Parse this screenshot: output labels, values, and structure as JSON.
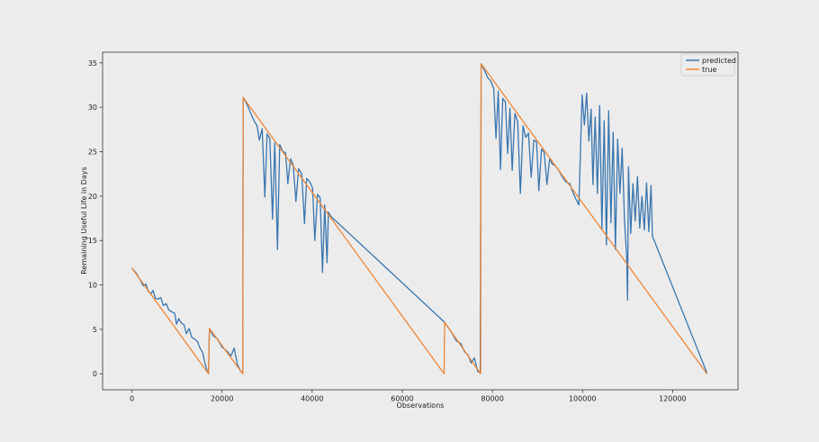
{
  "chart_data": {
    "type": "line",
    "xlabel": "Observations",
    "ylabel": "Remaining Useful Life in Days",
    "xlim": [
      -6500,
      134500
    ],
    "ylim": [
      -1.8,
      36.2
    ],
    "x_ticks": [
      0,
      20000,
      40000,
      60000,
      80000,
      100000,
      120000
    ],
    "y_ticks": [
      0,
      5,
      10,
      15,
      20,
      25,
      30,
      35
    ],
    "grid": false,
    "legend_placement": "top-right",
    "colors": {
      "predicted": "#3a76af",
      "true": "#ef8636"
    },
    "series": [
      {
        "name": "predicted",
        "points": [
          [
            0,
            11.9
          ],
          [
            1000,
            11.3
          ],
          [
            1800,
            10.6
          ],
          [
            2500,
            9.9
          ],
          [
            3100,
            10.1
          ],
          [
            3600,
            9.3
          ],
          [
            4200,
            9.0
          ],
          [
            4700,
            9.4
          ],
          [
            5200,
            8.5
          ],
          [
            5800,
            8.4
          ],
          [
            6400,
            8.6
          ],
          [
            7000,
            7.7
          ],
          [
            7600,
            7.9
          ],
          [
            8200,
            7.2
          ],
          [
            8800,
            7.0
          ],
          [
            9500,
            6.8
          ],
          [
            9900,
            5.6
          ],
          [
            10400,
            6.2
          ],
          [
            11000,
            5.7
          ],
          [
            11600,
            5.5
          ],
          [
            12100,
            4.5
          ],
          [
            12700,
            5.1
          ],
          [
            13300,
            4.1
          ],
          [
            14000,
            3.9
          ],
          [
            14600,
            3.6
          ],
          [
            15100,
            2.9
          ],
          [
            15700,
            2.4
          ],
          [
            16200,
            1.2
          ],
          [
            16700,
            0.3
          ],
          [
            17000,
            0.1
          ],
          [
            17200,
            5.1
          ],
          [
            18000,
            4.3
          ],
          [
            19000,
            3.9
          ],
          [
            20000,
            3.0
          ],
          [
            21000,
            2.6
          ],
          [
            22000,
            2.0
          ],
          [
            22700,
            2.9
          ],
          [
            23400,
            1.1
          ],
          [
            24100,
            0.3
          ],
          [
            24600,
            0.1
          ],
          [
            24700,
            31.1
          ],
          [
            25600,
            30.3
          ],
          [
            26500,
            29.2
          ],
          [
            27200,
            28.4
          ],
          [
            27800,
            27.9
          ],
          [
            28300,
            26.3
          ],
          [
            28900,
            27.6
          ],
          [
            29500,
            19.9
          ],
          [
            30000,
            27.0
          ],
          [
            30600,
            26.5
          ],
          [
            31200,
            17.4
          ],
          [
            31700,
            26.0
          ],
          [
            32300,
            14.0
          ],
          [
            32800,
            25.8
          ],
          [
            33500,
            25.0
          ],
          [
            34100,
            24.9
          ],
          [
            34600,
            21.4
          ],
          [
            35200,
            24.2
          ],
          [
            35800,
            23.5
          ],
          [
            36400,
            19.4
          ],
          [
            37000,
            23.1
          ],
          [
            37700,
            22.5
          ],
          [
            38300,
            16.9
          ],
          [
            38800,
            22.0
          ],
          [
            39500,
            21.6
          ],
          [
            40100,
            20.9
          ],
          [
            40600,
            15.0
          ],
          [
            41200,
            20.2
          ],
          [
            41800,
            19.8
          ],
          [
            42300,
            11.4
          ],
          [
            42800,
            19.0
          ],
          [
            43300,
            12.5
          ],
          [
            43600,
            18.2
          ],
          [
            44200,
            17.7
          ],
          [
            69400,
            5.8
          ],
          [
            70200,
            5.2
          ],
          [
            71000,
            4.6
          ],
          [
            72000,
            3.7
          ],
          [
            73000,
            3.4
          ],
          [
            73800,
            2.5
          ],
          [
            74600,
            2.1
          ],
          [
            75300,
            1.2
          ],
          [
            76000,
            1.8
          ],
          [
            76700,
            0.3
          ],
          [
            77300,
            0.1
          ],
          [
            77500,
            34.9
          ],
          [
            78300,
            34.1
          ],
          [
            79000,
            33.3
          ],
          [
            79600,
            33.0
          ],
          [
            80300,
            32.1
          ],
          [
            80800,
            26.5
          ],
          [
            81300,
            31.8
          ],
          [
            81800,
            23.0
          ],
          [
            82300,
            31.0
          ],
          [
            82900,
            30.6
          ],
          [
            83400,
            24.8
          ],
          [
            83900,
            29.9
          ],
          [
            84400,
            22.9
          ],
          [
            85000,
            29.3
          ],
          [
            85600,
            28.4
          ],
          [
            86200,
            20.3
          ],
          [
            86800,
            27.9
          ],
          [
            87400,
            26.6
          ],
          [
            88000,
            27.1
          ],
          [
            88600,
            22.1
          ],
          [
            89200,
            26.3
          ],
          [
            89800,
            26.1
          ],
          [
            90300,
            20.6
          ],
          [
            90900,
            25.3
          ],
          [
            91500,
            24.9
          ],
          [
            92100,
            21.3
          ],
          [
            92700,
            24.2
          ],
          [
            93300,
            23.6
          ],
          [
            94000,
            23.4
          ],
          [
            94700,
            22.9
          ],
          [
            95500,
            22.2
          ],
          [
            96300,
            21.6
          ],
          [
            97200,
            21.4
          ],
          [
            97800,
            20.5
          ],
          [
            98500,
            19.7
          ],
          [
            99200,
            19.0
          ],
          [
            99900,
            31.4
          ],
          [
            100400,
            28.0
          ],
          [
            100900,
            31.6
          ],
          [
            101400,
            26.2
          ],
          [
            101900,
            29.8
          ],
          [
            102300,
            21.3
          ],
          [
            102800,
            28.9
          ],
          [
            103300,
            20.3
          ],
          [
            103800,
            30.2
          ],
          [
            104300,
            16.2
          ],
          [
            104800,
            28.5
          ],
          [
            105300,
            14.5
          ],
          [
            105800,
            29.6
          ],
          [
            106300,
            17.0
          ],
          [
            106800,
            27.2
          ],
          [
            107300,
            14.0
          ],
          [
            107800,
            26.4
          ],
          [
            108300,
            20.3
          ],
          [
            108800,
            25.4
          ],
          [
            109300,
            17.5
          ],
          [
            109800,
            13.2
          ],
          [
            110000,
            8.3
          ],
          [
            110200,
            23.3
          ],
          [
            110700,
            15.8
          ],
          [
            111200,
            21.4
          ],
          [
            111700,
            17.2
          ],
          [
            112200,
            22.2
          ],
          [
            112700,
            16.4
          ],
          [
            113200,
            20.0
          ],
          [
            113700,
            16.2
          ],
          [
            114200,
            21.5
          ],
          [
            114700,
            16.0
          ],
          [
            115200,
            21.2
          ],
          [
            115500,
            15.5
          ],
          [
            127600,
            0.1
          ]
        ]
      },
      {
        "name": "true",
        "points": [
          [
            0,
            11.9
          ],
          [
            17000,
            0.0
          ],
          [
            17200,
            5.1
          ],
          [
            24600,
            0.0
          ],
          [
            24700,
            31.1
          ],
          [
            69300,
            0.0
          ],
          [
            69400,
            5.8
          ],
          [
            77400,
            0.0
          ],
          [
            77500,
            34.9
          ],
          [
            127600,
            0.0
          ]
        ]
      }
    ]
  }
}
